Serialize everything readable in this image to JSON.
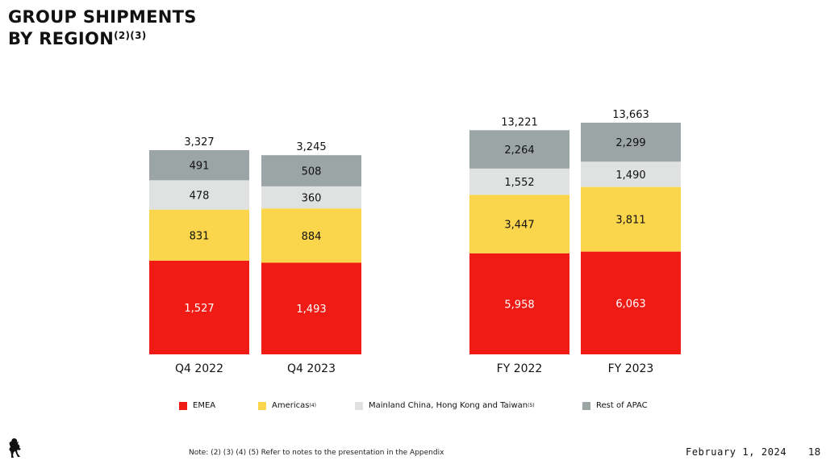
{
  "title": {
    "line1": "GROUP SHIPMENTS",
    "line2": "BY REGION",
    "superscript": "(2)(3)"
  },
  "chart_data": {
    "type": "bar",
    "stacked": true,
    "categories": [
      "Q4 2022",
      "Q4 2023",
      "FY 2022",
      "FY 2023"
    ],
    "totals": [
      3327,
      3245,
      13221,
      13663
    ],
    "total_labels": [
      "3,327",
      "3,245",
      "13,221",
      "13,663"
    ],
    "series": [
      {
        "name": "EMEA",
        "color": "#ef1b14",
        "text_color": "#ffffff",
        "values": [
          1527,
          1493,
          5958,
          6063
        ],
        "labels": [
          "1,527",
          "1,493",
          "5,958",
          "6,063"
        ]
      },
      {
        "name": "Americas",
        "color": "#fbd54b",
        "text_color": "#111111",
        "values": [
          831,
          884,
          3447,
          3811
        ],
        "labels": [
          "831",
          "884",
          "3,447",
          "3,811"
        ]
      },
      {
        "name": "Mainland China, Hong Kong and Taiwan",
        "color": "#dfe2e1",
        "text_color": "#111111",
        "values": [
          478,
          360,
          1552,
          1490
        ],
        "labels": [
          "478",
          "360",
          "1,552",
          "1,490"
        ]
      },
      {
        "name": "Rest of APAC",
        "color": "#9ca5a6",
        "text_color": "#111111",
        "values": [
          491,
          508,
          2264,
          2299
        ],
        "labels": [
          "491",
          "508",
          "2,264",
          "2,299"
        ]
      }
    ],
    "groups": [
      {
        "scale": "quarterly",
        "categories": [
          "Q4 2022",
          "Q4 2023"
        ]
      },
      {
        "scale": "full-year",
        "categories": [
          "FY 2022",
          "FY 2023"
        ]
      }
    ],
    "grid": false,
    "legend_position": "bottom"
  },
  "legend": [
    {
      "label": "EMEA",
      "sup": "",
      "color": "#ef1b14"
    },
    {
      "label": "Americas",
      "sup": "(4)",
      "color": "#fbd54b"
    },
    {
      "label": "Mainland China, Hong Kong and Taiwan",
      "sup": "(5)",
      "color": "#dfe2e1"
    },
    {
      "label": "Rest of APAC",
      "sup": "",
      "color": "#9ca5a6"
    }
  ],
  "footer": {
    "note": "Note: (2) (3) (4) (5) Refer to notes to the presentation in the Appendix",
    "date": "February 1, 2024",
    "page": "18"
  },
  "logo_icon": "prancing-horse-icon"
}
